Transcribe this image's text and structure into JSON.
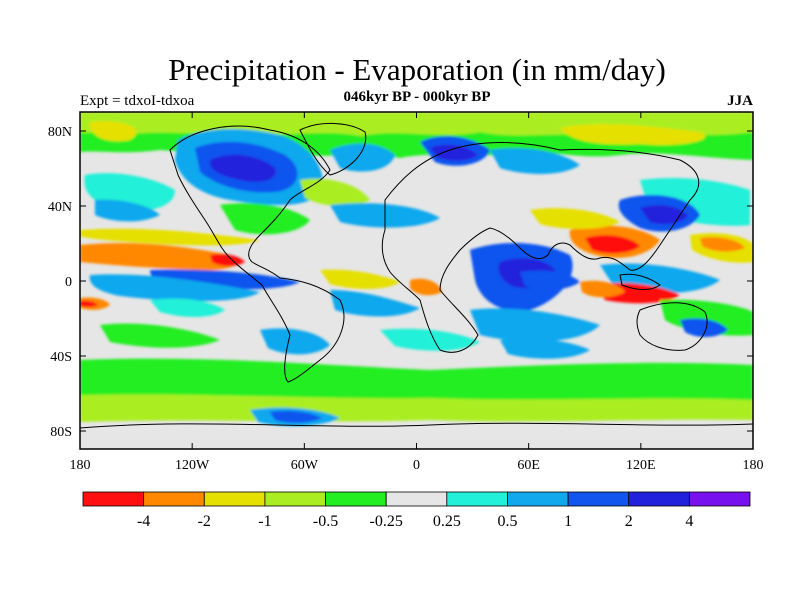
{
  "title": "Precipitation - Evaporation (in mm/day)",
  "subtitle": "046kyr BP - 000kyr BP",
  "experiment": "Expt = tdxoI-tdxoa",
  "season": "JJA",
  "x_ticks": [
    "180",
    "120W",
    "60W",
    "0",
    "60E",
    "120E",
    "180"
  ],
  "y_ticks": [
    "80N",
    "40N",
    "0",
    "40S",
    "80S"
  ],
  "colorbar": {
    "colors": [
      "#ff1010",
      "#ff8800",
      "#e6e000",
      "#aaee22",
      "#22ee22",
      "#e6e6e6",
      "#22f0d8",
      "#11a8ee",
      "#1155ee",
      "#2222dd",
      "#7711ee"
    ],
    "labels": [
      "-4",
      "-2",
      "-1",
      "-0.5",
      "-0.25",
      "0.25",
      "0.5",
      "1",
      "2",
      "4"
    ]
  },
  "colors": {
    "neutral": "#e6e6e6",
    "coast": "#000000"
  }
}
